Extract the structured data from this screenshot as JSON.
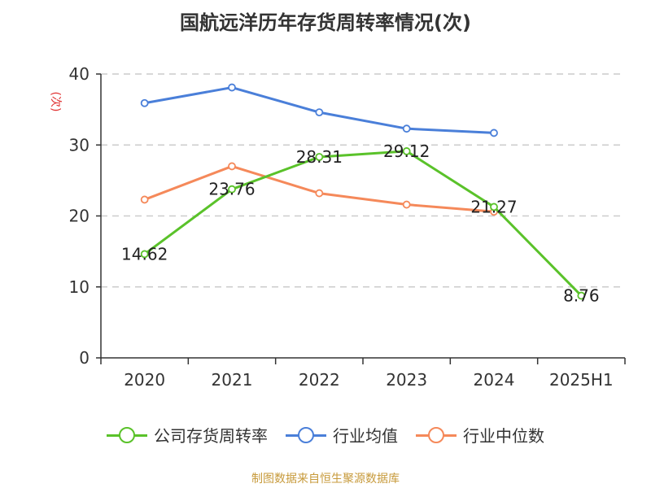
{
  "chart_data": {
    "type": "line",
    "title": "国航远洋历年存货周转率情况(次)",
    "ylabel": "(次)",
    "xlabel": "",
    "categories": [
      "2020",
      "2021",
      "2022",
      "2023",
      "2024",
      "2025H1"
    ],
    "ylim": [
      0,
      40
    ],
    "yticks": [
      0,
      10,
      20,
      30,
      40
    ],
    "grid": true,
    "legend_position": "bottom",
    "series": [
      {
        "name": "公司存货周转率",
        "color": "#5ac22a",
        "values": [
          14.62,
          23.76,
          28.31,
          29.12,
          21.27,
          8.76
        ],
        "labels": [
          "14.62",
          "23.76",
          "28.31",
          "29.12",
          "21.27",
          "8.76"
        ]
      },
      {
        "name": "行业均值",
        "color": "#4a7fd9",
        "values": [
          35.9,
          38.1,
          34.6,
          32.3,
          31.7,
          null
        ]
      },
      {
        "name": "行业中位数",
        "color": "#f5895a",
        "values": [
          22.3,
          27.0,
          23.2,
          21.6,
          20.6,
          null
        ]
      }
    ]
  },
  "source": "制图数据来自恒生聚源数据库"
}
